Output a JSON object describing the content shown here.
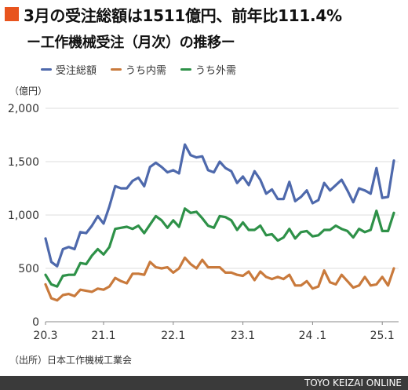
{
  "header": {
    "title": "3月の受注総額は1511億円、前年比111.4%",
    "subtitle": "ー工作機械受注（月次）の推移ー"
  },
  "footer": {
    "source": "（出所）日本工作機械工業会",
    "brand": "TOYO KEIZAI ONLINE"
  },
  "colors": {
    "accent": "#e8541e",
    "total": "#4e69ac",
    "domestic": "#c97a3c",
    "overseas": "#2e9148",
    "grid": "#dcdcdc"
  },
  "chart_data": {
    "type": "line",
    "unit_label": "（億円）",
    "ylim": [
      0,
      2000
    ],
    "y_ticks": [
      0,
      500,
      1000,
      1500,
      2000
    ],
    "y_tick_labels": [
      "0",
      "500",
      "1,000",
      "1,500",
      "2,000"
    ],
    "x_tick_labels": [
      "20.3",
      "21.1",
      "22.1",
      "23.1",
      "24 .1",
      "25.1"
    ],
    "x_tick_index": [
      0,
      10,
      22,
      34,
      46,
      58
    ],
    "x": [
      "20.3",
      "20.4",
      "20.5",
      "20.6",
      "20.7",
      "20.8",
      "20.9",
      "20.10",
      "20.11",
      "20.12",
      "21.1",
      "21.2",
      "21.3",
      "21.4",
      "21.5",
      "21.6",
      "21.7",
      "21.8",
      "21.9",
      "21.10",
      "21.11",
      "21.12",
      "22.1",
      "22.2",
      "22.3",
      "22.4",
      "22.5",
      "22.6",
      "22.7",
      "22.8",
      "22.9",
      "22.10",
      "22.11",
      "22.12",
      "23.1",
      "23.2",
      "23.3",
      "23.4",
      "23.5",
      "23.6",
      "23.7",
      "23.8",
      "23.9",
      "23.10",
      "23.11",
      "23.12",
      "24.1",
      "24.2",
      "24.3",
      "24.4",
      "24.5",
      "24.6",
      "24.7",
      "24.8",
      "24.9",
      "24.10",
      "24.11",
      "24.12",
      "25.1",
      "25.2",
      "25.3"
    ],
    "grid": true,
    "legend_position": "top",
    "series": [
      {
        "name": "受注総額",
        "color": "#4e69ac",
        "values": [
          780,
          560,
          520,
          680,
          700,
          680,
          840,
          830,
          900,
          990,
          920,
          1080,
          1270,
          1250,
          1250,
          1320,
          1350,
          1270,
          1450,
          1490,
          1450,
          1400,
          1420,
          1390,
          1660,
          1560,
          1540,
          1550,
          1420,
          1400,
          1500,
          1440,
          1410,
          1300,
          1360,
          1280,
          1410,
          1330,
          1200,
          1240,
          1150,
          1150,
          1310,
          1130,
          1170,
          1230,
          1110,
          1140,
          1300,
          1230,
          1280,
          1330,
          1230,
          1120,
          1250,
          1230,
          1200,
          1440,
          1160,
          1170,
          1510
        ]
      },
      {
        "name": "うち内需",
        "color": "#c97a3c",
        "values": [
          350,
          220,
          200,
          250,
          260,
          240,
          300,
          290,
          280,
          310,
          300,
          330,
          410,
          380,
          360,
          450,
          450,
          440,
          560,
          510,
          500,
          510,
          460,
          500,
          600,
          540,
          500,
          580,
          510,
          510,
          510,
          460,
          460,
          440,
          430,
          470,
          390,
          470,
          420,
          400,
          420,
          400,
          440,
          340,
          340,
          380,
          310,
          330,
          480,
          370,
          350,
          440,
          380,
          320,
          340,
          420,
          340,
          350,
          420,
          340,
          500
        ]
      },
      {
        "name": "うち外需",
        "color": "#2e9148",
        "values": [
          440,
          350,
          330,
          430,
          440,
          440,
          550,
          540,
          620,
          680,
          630,
          700,
          870,
          880,
          890,
          870,
          900,
          830,
          910,
          990,
          950,
          880,
          950,
          890,
          1060,
          1020,
          1030,
          970,
          900,
          880,
          990,
          980,
          950,
          860,
          930,
          860,
          860,
          900,
          810,
          820,
          760,
          790,
          870,
          780,
          840,
          850,
          800,
          810,
          860,
          860,
          900,
          870,
          850,
          790,
          870,
          840,
          860,
          1040,
          850,
          850,
          1020
        ]
      }
    ]
  }
}
